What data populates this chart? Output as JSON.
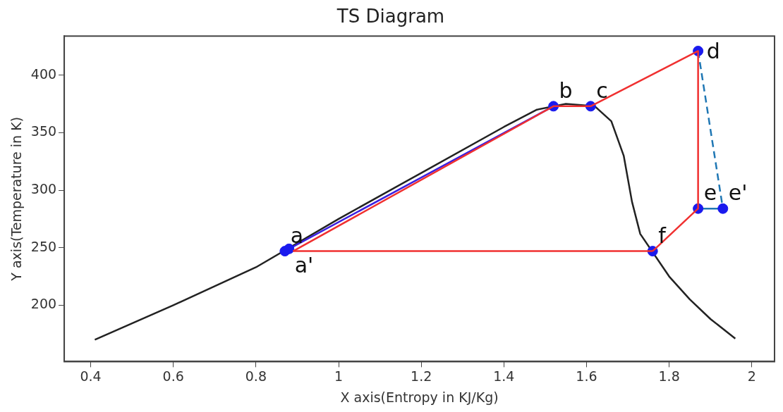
{
  "chart_data": {
    "type": "line",
    "title": "TS Diagram",
    "xlabel": "X axis(Entropy in KJ/Kg)",
    "ylabel": "Y axis(Temperature in K)",
    "xlim": [
      0.336,
      2.055
    ],
    "ylim": [
      151,
      434
    ],
    "xticks": [
      0.4,
      0.6,
      0.8,
      1.0,
      1.2,
      1.4,
      1.6,
      1.8,
      2.0
    ],
    "yticks": [
      200,
      250,
      300,
      350,
      400
    ],
    "grid": false,
    "legend": false,
    "series": [
      {
        "type": "line",
        "color": "#222222",
        "marker": "none",
        "x": [
          0.41,
          0.6,
          0.8,
          1.0,
          1.2,
          1.4,
          1.48,
          1.55,
          1.62,
          1.66,
          1.69,
          1.71,
          1.73,
          1.8,
          1.85,
          1.9,
          1.96
        ],
        "values": [
          170,
          200,
          233,
          275,
          315,
          355,
          370,
          375,
          373,
          360,
          330,
          290,
          262,
          225,
          205,
          188,
          171
        ]
      },
      {
        "type": "line",
        "color": "#f03030",
        "marker": "none",
        "x": [
          0.89,
          1.52,
          1.61,
          1.87,
          1.87,
          1.76
        ],
        "values": [
          247,
          373,
          373,
          421,
          284,
          247
        ]
      },
      {
        "type": "line",
        "color": "#f03030",
        "marker": "none",
        "x": [
          0.89,
          1.76
        ],
        "values": [
          247,
          247
        ]
      },
      {
        "type": "line",
        "color": "#3a1ee0",
        "marker": "none",
        "x": [
          0.88,
          1.52
        ],
        "values": [
          249,
          373
        ]
      },
      {
        "type": "line",
        "color": "#1f77b4",
        "marker": "none",
        "line_style": "dashed",
        "x": [
          1.87,
          1.93
        ],
        "values": [
          421,
          284
        ]
      },
      {
        "type": "line",
        "color": "#1f77b4",
        "marker": "none",
        "x": [
          1.87,
          1.93
        ],
        "values": [
          284,
          284
        ]
      },
      {
        "type": "scatter",
        "color": "#1a1aee",
        "marker": "circle",
        "x": [
          0.87,
          0.88,
          1.52,
          1.61,
          1.87,
          1.87,
          1.93,
          1.76
        ],
        "values": [
          247,
          249,
          373,
          373,
          421,
          284,
          284,
          247
        ]
      }
    ],
    "annotations": [
      {
        "text": "a",
        "x": 0.87,
        "y": 247
      },
      {
        "text": "a'",
        "x": 0.88,
        "y": 249
      },
      {
        "text": "b",
        "x": 1.52,
        "y": 373
      },
      {
        "text": "c",
        "x": 1.61,
        "y": 373
      },
      {
        "text": "d",
        "x": 1.87,
        "y": 421
      },
      {
        "text": "e",
        "x": 1.87,
        "y": 284
      },
      {
        "text": "e'",
        "x": 1.93,
        "y": 284
      },
      {
        "text": "f",
        "x": 1.76,
        "y": 247
      }
    ]
  }
}
